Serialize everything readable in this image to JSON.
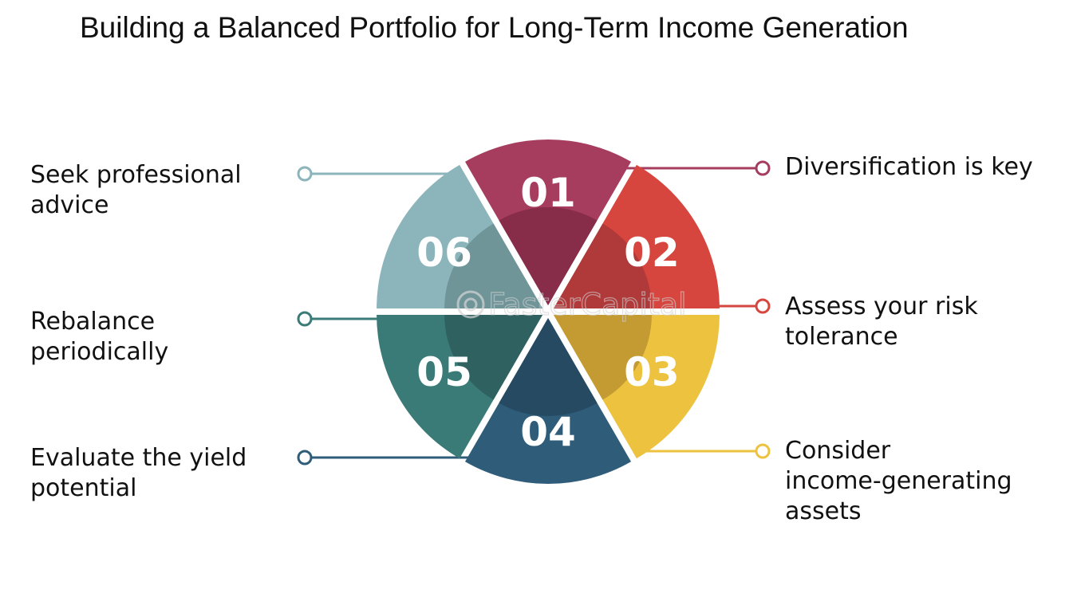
{
  "title": "Building a Balanced Portfolio for Long-Term Income Generation",
  "watermark": "FasterCapital",
  "segments": [
    {
      "number": "01",
      "lines": [
        "Diversification is key"
      ],
      "color": "#a63c5e",
      "inner": "#872d4a"
    },
    {
      "number": "02",
      "lines": [
        "Assess your risk",
        "tolerance"
      ],
      "color": "#d6463e",
      "inner": "#b0393a"
    },
    {
      "number": "03",
      "lines": [
        "Consider",
        "income-generating",
        "assets"
      ],
      "color": "#ecc23f",
      "inner": "#c49a33"
    },
    {
      "number": "04",
      "lines": [
        "Evaluate the yield",
        "potential"
      ],
      "color": "#2f5c79",
      "inner": "#254a62"
    },
    {
      "number": "05",
      "lines": [
        "Rebalance",
        "periodically"
      ],
      "color": "#3a7b78",
      "inner": "#2e615f"
    },
    {
      "number": "06",
      "lines": [
        "Seek professional",
        "advice"
      ],
      "color": "#8cb5bb",
      "inner": "#6f9599"
    }
  ]
}
